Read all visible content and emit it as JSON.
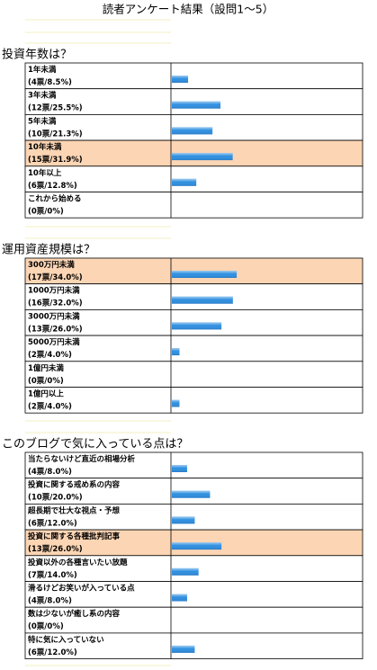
{
  "page_title": "読者アンケート結果（設問1～5）",
  "chart_data": [
    {
      "type": "bar",
      "title": "投資年数は？",
      "categories": [
        "1年未満",
        "3年未満",
        "5年未満",
        "10年未満",
        "10年以上",
        "これから始める"
      ],
      "values": [
        8.5,
        25.5,
        21.3,
        31.9,
        12.8,
        0
      ],
      "value_labels": [
        "(4票/8.5%)",
        "(12票/25.5%)",
        "(10票/21.3%)",
        "(15票/31.9%)",
        "(6票/12.8%)",
        "(0票/0%)"
      ],
      "xlim": [
        0,
        100
      ],
      "color": "#2e8fe0",
      "highlight_color": "#fcd5b4"
    },
    {
      "type": "bar",
      "title": "運用資産規模は？",
      "categories": [
        "300万円未満",
        "1000万円未満",
        "3000万円未満",
        "5000万円未満",
        "1億円未満",
        "1億円以上"
      ],
      "values": [
        34.0,
        32.0,
        26.0,
        4.0,
        0,
        4.0
      ],
      "value_labels": [
        "(17票/34.0%)",
        "(16票/32.0%)",
        "(13票/26.0%)",
        "(2票/4.0%)",
        "(0票/0%)",
        "(2票/4.0%)"
      ],
      "xlim": [
        0,
        100
      ],
      "color": "#2e8fe0",
      "highlight_color": "#fcd5b4"
    },
    {
      "type": "bar",
      "title": "このブログで気に入っている点は？",
      "categories": [
        "当たらないけど直近の相場分析",
        "投資に関する戒め系の内容",
        "超長期で壮大な視点・予想",
        "投資に関する各種批判記事",
        "投資以外の各種言いたい放題",
        "滑るけどお笑いが入っている点",
        "数は少ないが癒し系の内容",
        "特に気に入っていない"
      ],
      "values": [
        8.0,
        20.0,
        12.0,
        26.0,
        14.0,
        8.0,
        0,
        12.0
      ],
      "value_labels": [
        "(4票/8.0%)",
        "(10票/20.0%)",
        "(6票/12.0%)",
        "(13票/26.0%)",
        "(7票/14.0%)",
        "(4票/8.0%)",
        "(0票/0%)",
        "(6票/12.0%)"
      ],
      "xlim": [
        0,
        100
      ],
      "color": "#2e8fe0",
      "highlight_color": "#fcd5b4"
    }
  ]
}
